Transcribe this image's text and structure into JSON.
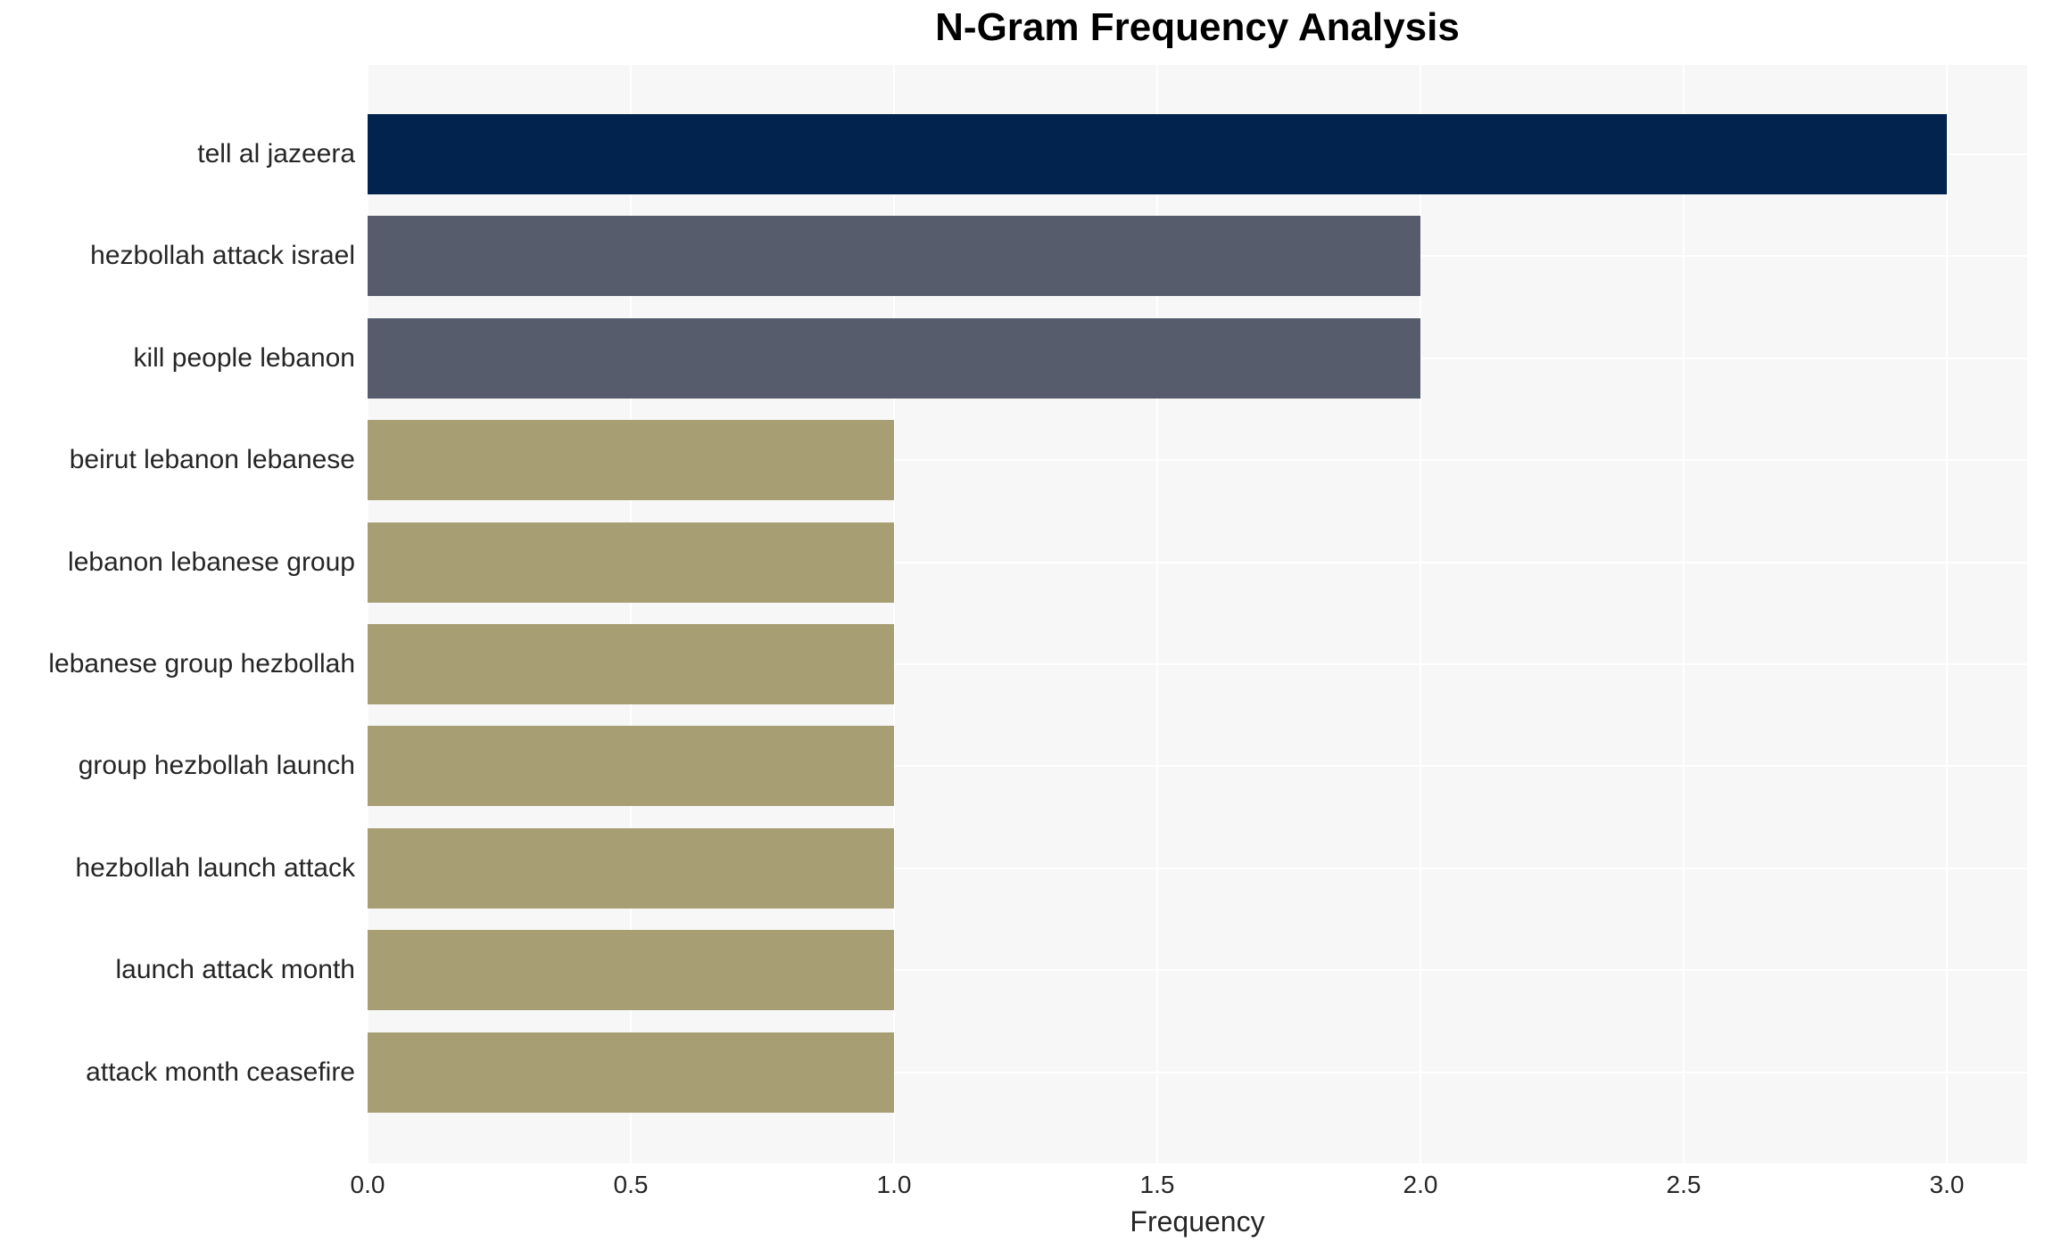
{
  "chart": {
    "title": "N-Gram Frequency Analysis",
    "xlabel": "Frequency"
  },
  "chart_data": {
    "type": "bar",
    "orientation": "horizontal",
    "title": "N-Gram Frequency Analysis",
    "xlabel": "Frequency",
    "ylabel": "",
    "categories": [
      "tell al jazeera",
      "hezbollah attack israel",
      "kill people lebanon",
      "beirut lebanon lebanese",
      "lebanon lebanese group",
      "lebanese group hezbollah",
      "group hezbollah launch",
      "hezbollah launch attack",
      "launch attack month",
      "attack month ceasefire"
    ],
    "values": [
      3,
      2,
      2,
      1,
      1,
      1,
      1,
      1,
      1,
      1
    ],
    "bar_colors": [
      "#02234d",
      "#565c6b",
      "#565c6b",
      "#a89e73",
      "#a89e73",
      "#a89e73",
      "#a89e73",
      "#a89e73",
      "#a89e73",
      "#a89e73"
    ],
    "x_ticks": [
      "0.0",
      "0.5",
      "1.0",
      "1.5",
      "2.0",
      "2.5",
      "3.0"
    ],
    "x_tick_values": [
      0.0,
      0.5,
      1.0,
      1.5,
      2.0,
      2.5,
      3.0
    ],
    "xlim": [
      0,
      3.15
    ],
    "grid": true,
    "legend": false,
    "plot_background": "#f7f7f7",
    "grid_color": "#ffffff",
    "text_color": "#262626"
  }
}
